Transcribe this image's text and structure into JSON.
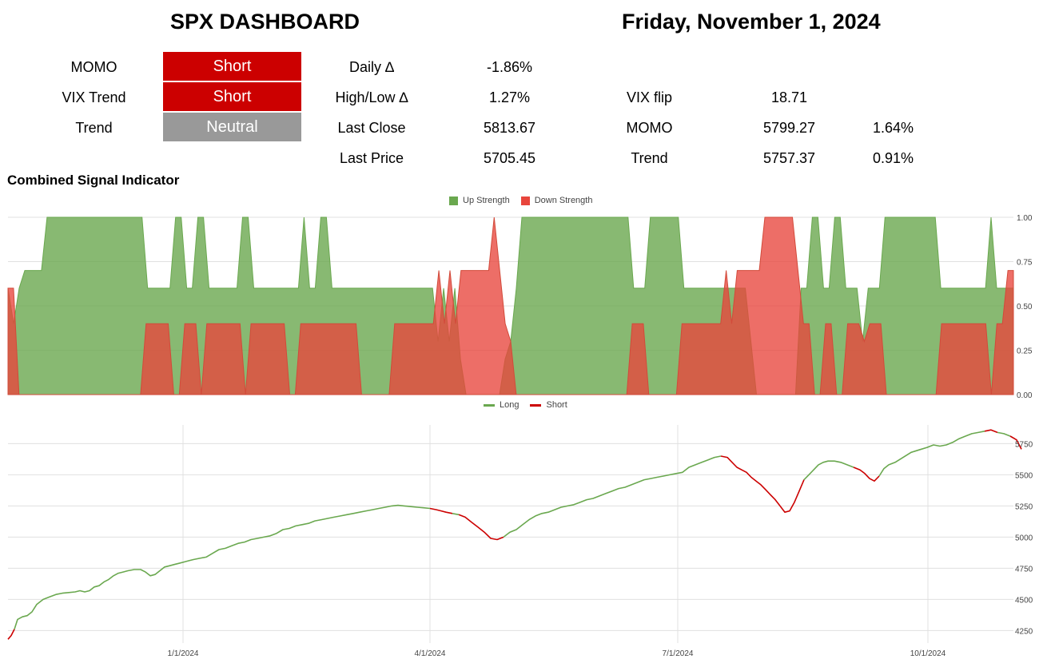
{
  "header": {
    "title": "SPX DASHBOARD",
    "date": "Friday, November 1, 2024"
  },
  "signals": [
    {
      "label": "MOMO",
      "value": "Short",
      "color": "#cc0000"
    },
    {
      "label": "VIX Trend",
      "value": "Short",
      "color": "#cc0000"
    },
    {
      "label": "Trend",
      "value": "Neutral",
      "color": "#999999"
    }
  ],
  "stats": {
    "daily": {
      "label": "Daily ∆",
      "value": "-1.86%"
    },
    "highlow": {
      "label": "High/Low ∆",
      "value": "1.27%"
    },
    "last_close": {
      "label": "Last Close",
      "value": "5813.67"
    },
    "last_price": {
      "label": "Last Price",
      "value": "5705.45"
    },
    "vix_flip": {
      "label": "VIX flip",
      "value": "18.71"
    },
    "momo": {
      "label": "MOMO",
      "value": "5799.27",
      "pct": "1.64%"
    },
    "trend": {
      "label": "Trend",
      "value": "5757.37",
      "pct": "0.91%"
    }
  },
  "section_title": "Combined Signal Indicator",
  "chart_data": [
    {
      "type": "area",
      "legend_position": "top",
      "series": [
        {
          "name": "Up Strength",
          "color": "#6aa84f"
        },
        {
          "name": "Down Strength",
          "color": "#e8453c"
        }
      ],
      "ylim": [
        0,
        1
      ],
      "yticks": [
        "1.00",
        "0.75",
        "0.50",
        "0.25",
        "0.00"
      ],
      "up_profile": [
        0.6,
        0.4,
        0.6,
        0.7,
        0.7,
        0.7,
        0.7,
        1,
        1,
        1,
        1,
        1,
        1,
        1,
        1,
        1,
        1,
        1,
        1,
        1,
        1,
        1,
        1,
        1,
        1,
        0.6,
        0.6,
        0.6,
        0.6,
        0.6,
        1,
        1,
        0.6,
        0.6,
        1,
        1,
        0.6,
        0.6,
        0.6,
        0.6,
        0.6,
        0.6,
        1,
        1,
        0.6,
        0.6,
        0.6,
        0.6,
        0.6,
        0.6,
        0.6,
        0.6,
        0.6,
        1,
        0.6,
        0.6,
        1,
        1,
        0.6,
        0.6,
        0.6,
        0.6,
        0.6,
        0.6,
        0.6,
        0.6,
        0.6,
        0.6,
        0.6,
        0.6,
        0.6,
        0.6,
        0.6,
        0.6,
        0.6,
        0.6,
        0.6,
        0.3,
        0.6,
        0.3,
        0.6,
        0.2,
        0,
        0,
        0,
        0,
        0,
        0,
        0,
        0.2,
        0.3,
        0.6,
        1,
        1,
        1,
        1,
        1,
        1,
        1,
        1,
        1,
        1,
        1,
        1,
        1,
        1,
        1,
        1,
        1,
        1,
        1,
        1,
        0.6,
        0.6,
        0.6,
        1,
        1,
        1,
        1,
        1,
        1,
        0.6,
        0.6,
        0.6,
        0.6,
        0.6,
        0.6,
        0.6,
        0.6,
        0.6,
        0.6,
        0.6,
        0.6,
        0.3,
        0,
        0,
        0,
        0,
        0,
        0,
        0,
        0,
        0.6,
        0.6,
        1,
        1,
        0.6,
        0.6,
        1,
        1,
        0.6,
        0.6,
        0.6,
        0.3,
        0.6,
        0.6,
        0.6,
        1,
        1,
        1,
        1,
        1,
        1,
        1,
        1,
        1,
        1,
        0.6,
        0.6,
        0.6,
        0.6,
        0.6,
        0.6,
        0.6,
        0.6,
        0.6,
        1,
        0.6,
        0.6,
        0.6,
        0.6
      ],
      "down_profile": [
        0.6,
        0.6,
        0,
        0,
        0,
        0,
        0,
        0,
        0,
        0,
        0,
        0,
        0,
        0,
        0,
        0,
        0,
        0,
        0,
        0,
        0,
        0,
        0,
        0,
        0,
        0.4,
        0.4,
        0.4,
        0.4,
        0.4,
        0,
        0,
        0.4,
        0.4,
        0.4,
        0,
        0.4,
        0.4,
        0.4,
        0.4,
        0.4,
        0.4,
        0.4,
        0,
        0.4,
        0.4,
        0.4,
        0.4,
        0.4,
        0.4,
        0.4,
        0,
        0,
        0.4,
        0.4,
        0.4,
        0.4,
        0.4,
        0.4,
        0.4,
        0.4,
        0.4,
        0.4,
        0.4,
        0,
        0,
        0,
        0,
        0,
        0,
        0.4,
        0.4,
        0.4,
        0.4,
        0.4,
        0.4,
        0.4,
        0.4,
        0.7,
        0.4,
        0.7,
        0.4,
        0.7,
        0.7,
        0.7,
        0.7,
        0.7,
        0.7,
        1,
        0.7,
        0.4,
        0.3,
        0,
        0,
        0,
        0,
        0,
        0,
        0,
        0,
        0,
        0,
        0,
        0,
        0,
        0,
        0,
        0,
        0,
        0,
        0,
        0,
        0,
        0.4,
        0.4,
        0.4,
        0,
        0,
        0,
        0,
        0,
        0,
        0.4,
        0.4,
        0.4,
        0.4,
        0.4,
        0.4,
        0.4,
        0.4,
        0.7,
        0.4,
        0.7,
        0.7,
        0.7,
        0.7,
        0.7,
        1,
        1,
        1,
        1,
        1,
        1,
        0.7,
        0.4,
        0.4,
        0,
        0,
        0.4,
        0.4,
        0,
        0,
        0.4,
        0.4,
        0.4,
        0.3,
        0.4,
        0.4,
        0.4,
        0,
        0,
        0,
        0,
        0,
        0,
        0,
        0,
        0,
        0,
        0.4,
        0.4,
        0.4,
        0.4,
        0.4,
        0.4,
        0.4,
        0.4,
        0.4,
        0,
        0.4,
        0.4,
        0.7,
        0.7
      ]
    },
    {
      "type": "line",
      "legend_position": "top",
      "series": [
        {
          "name": "Long",
          "color": "#6aa84f"
        },
        {
          "name": "Short",
          "color": "#cc0000"
        }
      ],
      "ylim": [
        4150,
        5900
      ],
      "yticks": [
        "5750",
        "5500",
        "5250",
        "5000",
        "4750",
        "4500",
        "4250"
      ],
      "xticks": [
        "1/1/2024",
        "4/1/2024",
        "7/1/2024",
        "10/1/2024"
      ],
      "price_path": [
        [
          0,
          4180
        ],
        [
          4,
          4210
        ],
        [
          8,
          4260
        ],
        [
          12,
          4340
        ],
        [
          18,
          4360
        ],
        [
          24,
          4370
        ],
        [
          30,
          4400
        ],
        [
          36,
          4460
        ],
        [
          44,
          4500
        ],
        [
          52,
          4520
        ],
        [
          60,
          4540
        ],
        [
          68,
          4550
        ],
        [
          76,
          4555
        ],
        [
          84,
          4560
        ],
        [
          90,
          4570
        ],
        [
          96,
          4560
        ],
        [
          102,
          4570
        ],
        [
          108,
          4600
        ],
        [
          114,
          4610
        ],
        [
          120,
          4640
        ],
        [
          126,
          4660
        ],
        [
          132,
          4690
        ],
        [
          138,
          4710
        ],
        [
          144,
          4720
        ],
        [
          150,
          4730
        ],
        [
          158,
          4740
        ],
        [
          166,
          4740
        ],
        [
          172,
          4720
        ],
        [
          178,
          4690
        ],
        [
          184,
          4700
        ],
        [
          190,
          4730
        ],
        [
          196,
          4760
        ],
        [
          202,
          4770
        ],
        [
          208,
          4780
        ],
        [
          214,
          4790
        ],
        [
          220,
          4800
        ],
        [
          226,
          4810
        ],
        [
          232,
          4820
        ],
        [
          240,
          4830
        ],
        [
          248,
          4840
        ],
        [
          256,
          4870
        ],
        [
          264,
          4900
        ],
        [
          272,
          4910
        ],
        [
          280,
          4930
        ],
        [
          288,
          4950
        ],
        [
          296,
          4960
        ],
        [
          304,
          4980
        ],
        [
          312,
          4990
        ],
        [
          320,
          5000
        ],
        [
          328,
          5010
        ],
        [
          336,
          5030
        ],
        [
          344,
          5060
        ],
        [
          352,
          5070
        ],
        [
          360,
          5090
        ],
        [
          368,
          5100
        ],
        [
          376,
          5110
        ],
        [
          384,
          5130
        ],
        [
          392,
          5140
        ],
        [
          400,
          5150
        ],
        [
          408,
          5160
        ],
        [
          416,
          5170
        ],
        [
          424,
          5180
        ],
        [
          432,
          5190
        ],
        [
          440,
          5200
        ],
        [
          448,
          5210
        ],
        [
          456,
          5220
        ],
        [
          464,
          5230
        ],
        [
          472,
          5240
        ],
        [
          480,
          5250
        ],
        [
          488,
          5255
        ],
        [
          496,
          5250
        ],
        [
          504,
          5245
        ],
        [
          512,
          5240
        ],
        [
          520,
          5235
        ],
        [
          528,
          5230
        ],
        [
          536,
          5220
        ],
        [
          542,
          5210
        ],
        [
          548,
          5200
        ],
        [
          556,
          5190
        ],
        [
          564,
          5180
        ],
        [
          572,
          5160
        ],
        [
          580,
          5120
        ],
        [
          588,
          5080
        ],
        [
          596,
          5040
        ],
        [
          604,
          4990
        ],
        [
          612,
          4980
        ],
        [
          620,
          5000
        ],
        [
          628,
          5040
        ],
        [
          636,
          5060
        ],
        [
          644,
          5100
        ],
        [
          652,
          5140
        ],
        [
          660,
          5170
        ],
        [
          668,
          5190
        ],
        [
          676,
          5200
        ],
        [
          684,
          5220
        ],
        [
          692,
          5240
        ],
        [
          700,
          5250
        ],
        [
          708,
          5260
        ],
        [
          716,
          5280
        ],
        [
          724,
          5300
        ],
        [
          732,
          5310
        ],
        [
          740,
          5330
        ],
        [
          748,
          5350
        ],
        [
          756,
          5370
        ],
        [
          764,
          5390
        ],
        [
          772,
          5400
        ],
        [
          780,
          5420
        ],
        [
          788,
          5440
        ],
        [
          796,
          5460
        ],
        [
          804,
          5470
        ],
        [
          812,
          5480
        ],
        [
          820,
          5490
        ],
        [
          828,
          5500
        ],
        [
          836,
          5510
        ],
        [
          844,
          5520
        ],
        [
          852,
          5560
        ],
        [
          860,
          5580
        ],
        [
          868,
          5600
        ],
        [
          876,
          5620
        ],
        [
          884,
          5640
        ],
        [
          892,
          5650
        ],
        [
          900,
          5640
        ],
        [
          906,
          5600
        ],
        [
          912,
          5560
        ],
        [
          918,
          5540
        ],
        [
          924,
          5520
        ],
        [
          930,
          5480
        ],
        [
          936,
          5450
        ],
        [
          942,
          5420
        ],
        [
          948,
          5380
        ],
        [
          954,
          5340
        ],
        [
          960,
          5300
        ],
        [
          966,
          5250
        ],
        [
          972,
          5200
        ],
        [
          978,
          5210
        ],
        [
          984,
          5280
        ],
        [
          990,
          5370
        ],
        [
          996,
          5460
        ],
        [
          1002,
          5500
        ],
        [
          1008,
          5540
        ],
        [
          1014,
          5580
        ],
        [
          1020,
          5600
        ],
        [
          1026,
          5610
        ],
        [
          1034,
          5610
        ],
        [
          1042,
          5600
        ],
        [
          1050,
          5580
        ],
        [
          1058,
          5560
        ],
        [
          1066,
          5540
        ],
        [
          1072,
          5510
        ],
        [
          1078,
          5470
        ],
        [
          1084,
          5450
        ],
        [
          1090,
          5490
        ],
        [
          1096,
          5550
        ],
        [
          1102,
          5580
        ],
        [
          1110,
          5600
        ],
        [
          1120,
          5640
        ],
        [
          1130,
          5680
        ],
        [
          1140,
          5700
        ],
        [
          1150,
          5720
        ],
        [
          1158,
          5740
        ],
        [
          1166,
          5730
        ],
        [
          1174,
          5740
        ],
        [
          1182,
          5760
        ],
        [
          1190,
          5790
        ],
        [
          1198,
          5810
        ],
        [
          1206,
          5830
        ],
        [
          1214,
          5840
        ],
        [
          1222,
          5850
        ],
        [
          1230,
          5860
        ],
        [
          1238,
          5840
        ],
        [
          1246,
          5830
        ],
        [
          1254,
          5810
        ],
        [
          1262,
          5780
        ],
        [
          1268,
          5705
        ]
      ],
      "short_ranges": [
        [
          0,
          10
        ],
        [
          536,
          560
        ],
        [
          566,
          622
        ],
        [
          900,
          912
        ],
        [
          918,
          1000
        ],
        [
          1066,
          1092
        ],
        [
          1230,
          1244
        ],
        [
          1260,
          1268
        ]
      ]
    }
  ]
}
